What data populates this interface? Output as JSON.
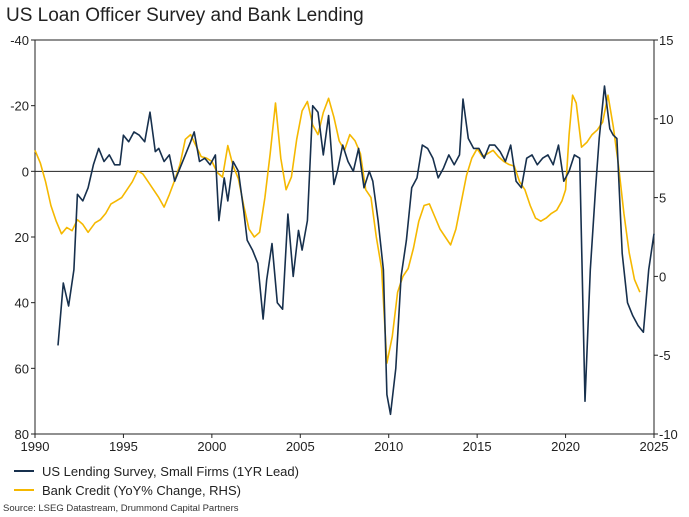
{
  "chart_data": {
    "type": "line",
    "title": "US Loan Officer Survey and Bank Lending",
    "x_ticks": [
      "1990",
      "1995",
      "2000",
      "2005",
      "2010",
      "2015",
      "2020",
      "2025"
    ],
    "xlim": [
      1990,
      2025
    ],
    "left_axis": {
      "ylim_top": -40,
      "ylim_bottom": 80,
      "inverted": true,
      "ticks": [
        "-40",
        "-20",
        "0",
        "20",
        "40",
        "60",
        "80"
      ]
    },
    "right_axis": {
      "ylim_bottom": -10,
      "ylim_top": 15,
      "ticks": [
        "15",
        "10",
        "5",
        "0",
        "-5",
        "-10"
      ]
    },
    "series": [
      {
        "name": "US Lending Survey, Small Firms (1YR Lead)",
        "axis": "left",
        "color": "#17304d",
        "x": [
          1991.3,
          1991.6,
          1991.9,
          1992.2,
          1992.4,
          1992.7,
          1993.0,
          1993.3,
          1993.6,
          1993.9,
          1994.2,
          1994.5,
          1994.8,
          1995.0,
          1995.3,
          1995.6,
          1995.9,
          1996.2,
          1996.5,
          1996.8,
          1997.0,
          1997.3,
          1997.6,
          1997.9,
          1998.2,
          1998.5,
          1998.8,
          1999.0,
          1999.3,
          1999.6,
          1999.9,
          2000.2,
          2000.4,
          2000.7,
          2000.9,
          2001.2,
          2001.5,
          2001.8,
          2002.0,
          2002.3,
          2002.6,
          2002.9,
          2003.1,
          2003.4,
          2003.7,
          2004.0,
          2004.3,
          2004.6,
          2004.9,
          2005.1,
          2005.4,
          2005.7,
          2006.0,
          2006.3,
          2006.6,
          2006.9,
          2007.1,
          2007.4,
          2007.7,
          2008.0,
          2008.3,
          2008.6,
          2008.9,
          2009.1,
          2009.4,
          2009.7,
          2009.9,
          2010.1,
          2010.4,
          2010.7,
          2011.0,
          2011.3,
          2011.6,
          2011.9,
          2012.2,
          2012.5,
          2012.8,
          2013.1,
          2013.4,
          2013.7,
          2014.0,
          2014.2,
          2014.5,
          2014.8,
          2015.1,
          2015.4,
          2015.7,
          2016.0,
          2016.3,
          2016.6,
          2016.9,
          2017.2,
          2017.5,
          2017.8,
          2018.1,
          2018.4,
          2018.7,
          2019.0,
          2019.3,
          2019.6,
          2019.9,
          2020.2,
          2020.5,
          2020.8,
          2021.1,
          2021.4,
          2021.7,
          2021.9,
          2022.2,
          2022.5,
          2022.7,
          2022.9,
          2023.2,
          2023.5,
          2023.8,
          2024.1,
          2024.4,
          2024.7,
          2025.0
        ],
        "y": [
          53,
          34,
          41,
          30,
          7,
          9,
          5,
          -2,
          -7,
          -3,
          -5,
          -2,
          -2,
          -11,
          -9,
          -12,
          -11,
          -9,
          -18,
          -6,
          -7,
          -3,
          -5,
          3,
          -1,
          -5,
          -9,
          -12,
          -3,
          -4,
          -2,
          -5,
          15,
          2,
          9,
          -3,
          0,
          12,
          21,
          24,
          28,
          45,
          33,
          22,
          40,
          42,
          13,
          32,
          18,
          24,
          15,
          -20,
          -18,
          -5,
          -17,
          4,
          0,
          -8,
          -3,
          0,
          -7,
          5,
          0,
          3,
          15,
          30,
          68,
          74,
          60,
          32,
          21,
          5,
          2,
          -8,
          -7,
          -4,
          2,
          -1,
          -5,
          -2,
          -5,
          -22,
          -10,
          -7,
          -7,
          -4,
          -8,
          -8,
          -6,
          -3,
          -8,
          3,
          5,
          -4,
          -5,
          -2,
          -4,
          -5,
          -2,
          -8,
          3,
          0,
          -5,
          -4,
          70,
          30,
          5,
          -10,
          -26,
          -13,
          -11,
          -10,
          25,
          40,
          44,
          47,
          49,
          30,
          19
        ]
      },
      {
        "name": "Bank Credit (YoY% Change, RHS)",
        "axis": "right",
        "color": "#f5b800",
        "x": [
          1990.0,
          1990.3,
          1990.6,
          1990.9,
          1991.2,
          1991.5,
          1991.8,
          1992.1,
          1992.4,
          1992.7,
          1993.0,
          1993.4,
          1993.7,
          1994.0,
          1994.3,
          1994.6,
          1994.9,
          1995.2,
          1995.5,
          1995.8,
          1996.1,
          1996.4,
          1996.7,
          1997.0,
          1997.3,
          1997.6,
          1997.9,
          1998.2,
          1998.5,
          1998.8,
          1999.1,
          1999.4,
          1999.7,
          2000.0,
          2000.3,
          2000.6,
          2000.9,
          2001.2,
          2001.5,
          2001.8,
          2002.1,
          2002.4,
          2002.7,
          2003.0,
          2003.3,
          2003.6,
          2003.9,
          2004.2,
          2004.5,
          2004.8,
          2005.1,
          2005.4,
          2005.7,
          2006.0,
          2006.3,
          2006.6,
          2006.9,
          2007.2,
          2007.5,
          2007.8,
          2008.1,
          2008.4,
          2008.7,
          2009.0,
          2009.3,
          2009.6,
          2009.9,
          2010.2,
          2010.5,
          2010.8,
          2011.1,
          2011.4,
          2011.7,
          2012.0,
          2012.3,
          2012.6,
          2012.9,
          2013.2,
          2013.5,
          2013.8,
          2014.1,
          2014.4,
          2014.7,
          2015.0,
          2015.3,
          2015.6,
          2015.9,
          2016.2,
          2016.5,
          2016.8,
          2017.1,
          2017.4,
          2017.7,
          2018.0,
          2018.3,
          2018.6,
          2018.9,
          2019.2,
          2019.5,
          2019.8,
          2020.0,
          2020.2,
          2020.4,
          2020.6,
          2020.9,
          2021.2,
          2021.5,
          2021.8,
          2022.1,
          2022.4,
          2022.7,
          2023.0,
          2023.3,
          2023.6,
          2023.9,
          2024.2
        ],
        "y": [
          8.0,
          7.2,
          6.0,
          4.5,
          3.5,
          2.7,
          3.1,
          2.9,
          3.6,
          3.3,
          2.8,
          3.4,
          3.6,
          4.0,
          4.6,
          4.8,
          5.0,
          5.5,
          6.0,
          6.7,
          6.5,
          6.0,
          5.5,
          5.0,
          4.4,
          5.2,
          6.1,
          7.1,
          8.7,
          9.0,
          8.3,
          7.6,
          7.5,
          7.3,
          6.6,
          6.3,
          8.3,
          7.0,
          6.2,
          4.5,
          3.0,
          2.5,
          2.8,
          5.0,
          7.8,
          11.0,
          7.5,
          5.5,
          6.3,
          8.7,
          10.5,
          11.1,
          9.6,
          9.0,
          10.4,
          11.3,
          10.1,
          8.6,
          8.0,
          9.0,
          8.6,
          7.8,
          5.5,
          5.0,
          2.5,
          0.5,
          -5.5,
          -3.8,
          -1.0,
          0.0,
          0.5,
          1.8,
          3.5,
          4.5,
          4.6,
          3.8,
          3.0,
          2.5,
          2.0,
          3.0,
          4.7,
          6.4,
          7.5,
          8.1,
          7.6,
          7.8,
          8.0,
          7.6,
          7.3,
          7.1,
          7.0,
          6.0,
          5.5,
          4.5,
          3.7,
          3.5,
          3.7,
          4.0,
          4.2,
          4.8,
          5.5,
          9.0,
          11.5,
          11.0,
          8.2,
          8.5,
          9.0,
          9.3,
          9.8,
          11.5,
          9.5,
          7.0,
          4.0,
          1.5,
          -0.2,
          -1.0
        ]
      }
    ]
  },
  "legend": [
    {
      "label": "US Lending Survey, Small Firms (1YR Lead)",
      "color": "#17304d"
    },
    {
      "label": "Bank Credit (YoY% Change, RHS)",
      "color": "#f5b800"
    }
  ],
  "source": "Source: LSEG Datastream, Drummond Capital Partners"
}
